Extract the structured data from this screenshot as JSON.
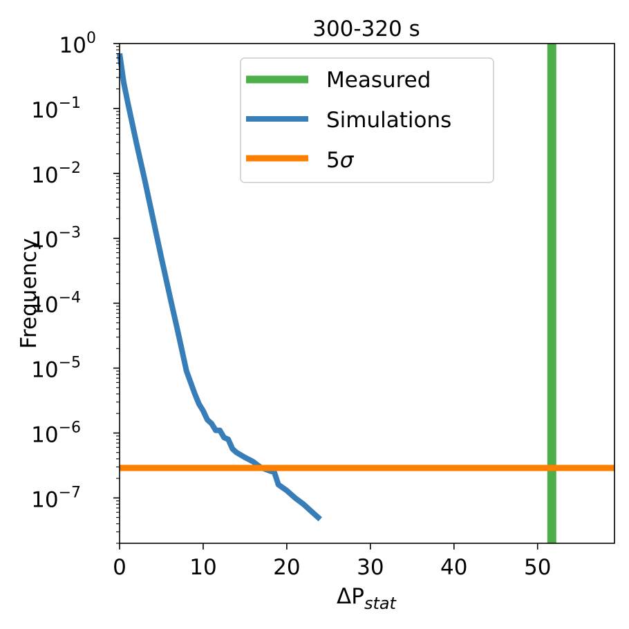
{
  "chart_data": {
    "type": "line",
    "title": "300-320 s",
    "xlabel": "ΔP_stat",
    "ylabel": "Frequency",
    "xlim": [
      0,
      59.2
    ],
    "ylim": [
      2e-08,
      1
    ],
    "yscale": "log",
    "grid": false,
    "legend_position": "top-center",
    "x_ticks": [
      0,
      10,
      20,
      30,
      40,
      50
    ],
    "y_ticks": [
      {
        "exp": "0",
        "value": 1
      },
      {
        "exp": "−1",
        "value": 0.1
      },
      {
        "exp": "−2",
        "value": 0.01
      },
      {
        "exp": "−3",
        "value": 0.001
      },
      {
        "exp": "−4",
        "value": 0.0001
      },
      {
        "exp": "−5",
        "value": 1e-05
      },
      {
        "exp": "−6",
        "value": 1e-06
      },
      {
        "exp": "−7",
        "value": 1e-07
      }
    ],
    "series": [
      {
        "name": "Measured",
        "kind": "vline",
        "x": 51.7,
        "color": "#4daf4a"
      },
      {
        "name": "Simulations",
        "kind": "line",
        "color": "#377eb8",
        "x": [
          0,
          0.5,
          1,
          2,
          3,
          4,
          5,
          6,
          7,
          8,
          9,
          9.5,
          10,
          10.5,
          11,
          11.5,
          12,
          12.5,
          13,
          13.5,
          14,
          15,
          16,
          16.5,
          17,
          18,
          18.5,
          19,
          20,
          21,
          22,
          23,
          24
        ],
        "values": [
          0.7,
          0.25,
          0.12,
          0.03,
          0.008,
          0.002,
          0.0005,
          0.00013,
          3.5e-05,
          9e-06,
          4e-06,
          2.8e-06,
          2.2e-06,
          1.6e-06,
          1.4e-06,
          1.1e-06,
          1.1e-06,
          8.5e-07,
          8e-07,
          5.7e-07,
          5e-07,
          4.2e-07,
          3.6e-07,
          3.2e-07,
          2.9e-07,
          2.6e-07,
          2.5e-07,
          1.6e-07,
          1.3e-07,
          1e-07,
          8e-08,
          6.1e-08,
          4.7e-08
        ]
      },
      {
        "name": "5σ",
        "kind": "hline",
        "y": 2.9e-07,
        "color": "#ff7f00"
      }
    ]
  }
}
